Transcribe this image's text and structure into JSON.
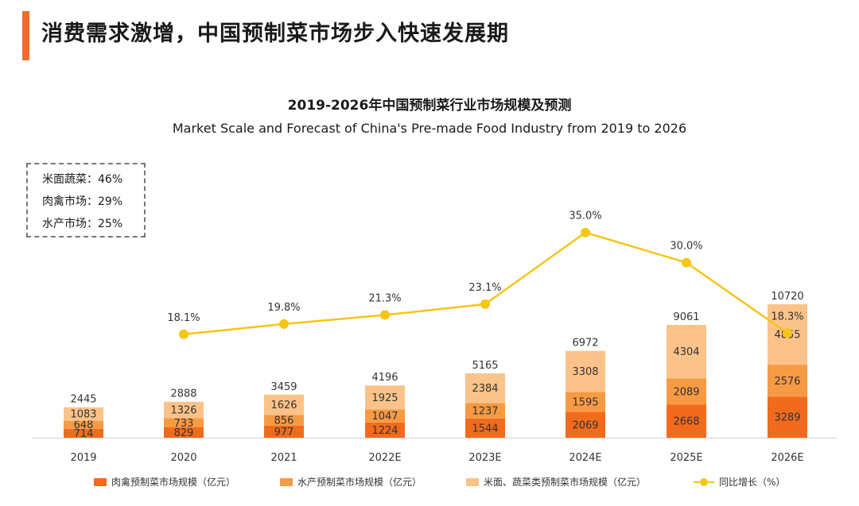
{
  "header": {
    "title": "消费需求激增，中国预制菜市场步入快速发展期"
  },
  "share_box": {
    "items": [
      {
        "label": "米面蔬菜：46%"
      },
      {
        "label": "肉禽市场：29%"
      },
      {
        "label": "水产市场：25%"
      }
    ]
  },
  "colors": {
    "accent": "#F26B2A",
    "meat": "#F26B1D",
    "aquatic": "#F79A44",
    "veg": "#FBC389",
    "growth": "#F5C518"
  },
  "chart_data": {
    "type": "bar",
    "stacked": true,
    "title": "2019-2026年中国预制菜行业市场规模及预测",
    "subtitle": "Market Scale and Forecast of China's Pre-made Food Industry from 2019 to 2026",
    "categories": [
      "2019",
      "2020",
      "2021",
      "2022E",
      "2023E",
      "2024E",
      "2025E",
      "2026E"
    ],
    "series": [
      {
        "name": "肉禽预制菜市场规模（亿元）",
        "values": [
          714,
          829,
          977,
          1224,
          1544,
          2069,
          2668,
          3289
        ]
      },
      {
        "name": "水产预制菜市场规模（亿元）",
        "values": [
          648,
          733,
          856,
          1047,
          1237,
          1595,
          2089,
          2576
        ]
      },
      {
        "name": "米面、蔬菜类预制菜市场规模（亿元）",
        "values": [
          1083,
          1326,
          1626,
          1925,
          2384,
          3308,
          4304,
          4855
        ]
      }
    ],
    "totals": [
      2445,
      2888,
      3459,
      4196,
      5165,
      6972,
      9061,
      10720
    ],
    "line": {
      "name": "同比增长（%）",
      "values": [
        null,
        18.1,
        19.8,
        21.3,
        23.1,
        35.0,
        30.0,
        18.3
      ],
      "labels": [
        "",
        "18.1%",
        "19.8%",
        "21.3%",
        "23.1%",
        "35.0%",
        "30.0%",
        "18.3%"
      ]
    },
    "legend_position": "bottom",
    "grid": false
  }
}
